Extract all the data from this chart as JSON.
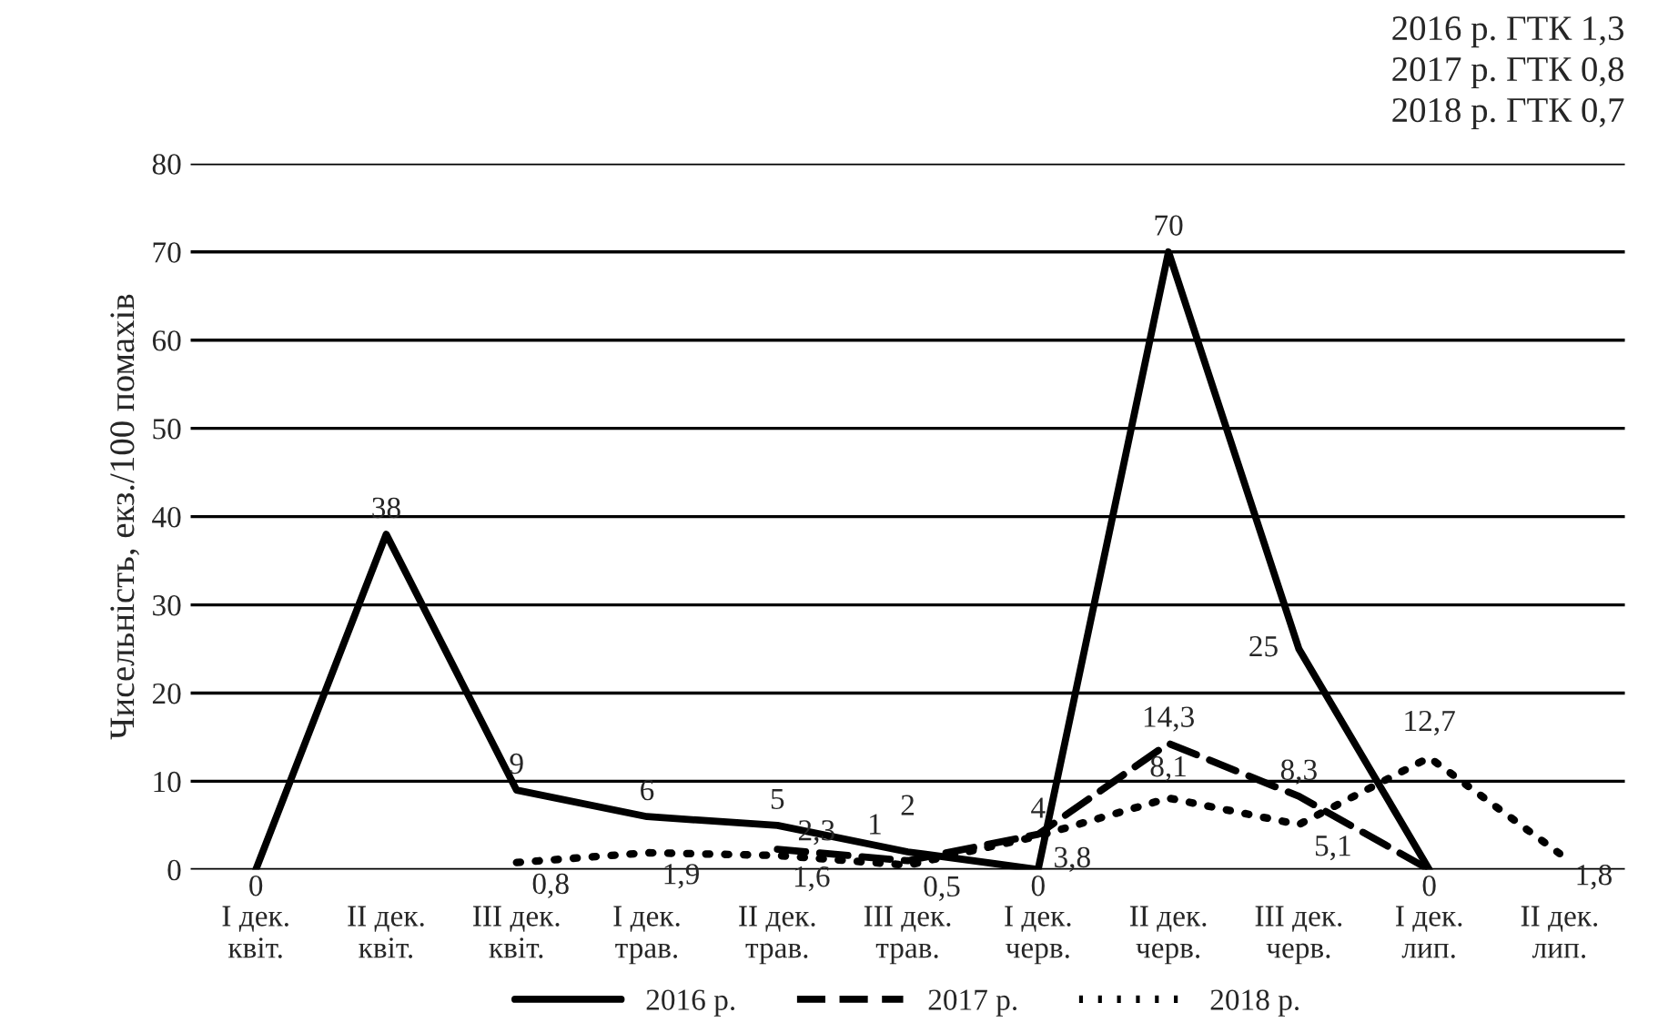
{
  "chart_data": {
    "type": "line",
    "ylabel": "Чисельність, екз./100 помахів",
    "annotations": [
      "2016 р. ГТК 1,3",
      "2017 р. ГТК 0,8",
      "2018 р. ГТК 0,7"
    ],
    "categories": [
      "I дек.\nквіт.",
      "II дек.\nквіт.",
      "III дек.\nквіт.",
      "I дек.\nтрав.",
      "II дек.\nтрав.",
      "III дек.\nтрав.",
      "I дек.\nчерв.",
      "II дек.\nчерв.",
      "III дек.\nчерв.",
      "I дек.\nлип.",
      "II дек.\nлип."
    ],
    "series": [
      {
        "name": "2016 р.",
        "color": "#000000",
        "line_style": "solid",
        "values": [
          0,
          38,
          9,
          6,
          5,
          2,
          0,
          70,
          25,
          0,
          null
        ],
        "value_labels": [
          "0",
          "38",
          "9",
          "6",
          "5",
          "2",
          "0",
          "70",
          "25",
          "0",
          null
        ]
      },
      {
        "name": "2017 р.",
        "color": "#000000",
        "line_style": "dashed",
        "values": [
          null,
          null,
          null,
          null,
          2.3,
          1,
          4,
          14.3,
          8.3,
          0,
          null
        ],
        "value_labels": [
          null,
          null,
          null,
          null,
          "2,3",
          "1",
          "4",
          "14,3",
          "8,3",
          null,
          null
        ]
      },
      {
        "name": "2018 р.",
        "color": "#000000",
        "line_style": "dotted",
        "values": [
          null,
          null,
          0.8,
          1.9,
          1.6,
          0.5,
          3.8,
          8.1,
          5.1,
          12.7,
          1.8
        ],
        "value_labels": [
          null,
          null,
          "0,8",
          "1,9",
          "1,6",
          "0,5",
          "3,8",
          "8,1",
          "5,1",
          "12,7",
          "1,8"
        ]
      }
    ],
    "ylim": [
      0,
      80
    ],
    "yticks": [
      0,
      10,
      20,
      30,
      40,
      50,
      60,
      70,
      80
    ],
    "grid": "y",
    "legend": "bottom",
    "marker": "none"
  }
}
